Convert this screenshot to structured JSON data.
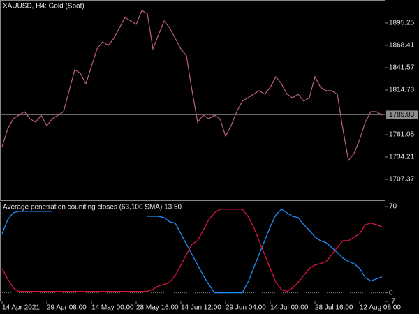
{
  "chart_data": [
    {
      "type": "line",
      "title": "XAUUSD, H4:  Gold (Spot)",
      "color": "#c0607e",
      "values": [
        1746.8,
        1767.8,
        1780.3,
        1784.5,
        1788.7,
        1780.3,
        1776.1,
        1784.5,
        1772.0,
        1780.3,
        1784.5,
        1788.7,
        1813.9,
        1839.1,
        1834.9,
        1822.3,
        1843.2,
        1864.2,
        1872.6,
        1868.4,
        1876.8,
        1889.4,
        1902.0,
        1897.8,
        1893.6,
        1910.3,
        1906.2,
        1864.2,
        1881.0,
        1897.8,
        1889.4,
        1876.8,
        1864.2,
        1855.8,
        1813.9,
        1776.1,
        1784.5,
        1780.3,
        1784.5,
        1780.3,
        1759.4,
        1772.0,
        1788.7,
        1801.3,
        1805.5,
        1809.7,
        1813.9,
        1809.7,
        1818.1,
        1830.7,
        1822.3,
        1809.7,
        1805.5,
        1809.7,
        1801.3,
        1805.5,
        1830.7,
        1818.1,
        1813.9,
        1813.9,
        1809.7,
        1767.8,
        1730.0,
        1738.4,
        1755.2,
        1776.1,
        1788.7,
        1788.7,
        1784.5
      ],
      "ylim": [
        1681.4,
        1922.9
      ],
      "yticks": [
        1895.25,
        1868.41,
        1841.57,
        1814.73,
        1761.05,
        1734.21,
        1707.37
      ],
      "price_line": 1785.03,
      "grid": false
    },
    {
      "type": "line",
      "title": "Average penetration couniting closes (63,100 SMA) 13 50",
      "categories": [
        "14 Apr 2021",
        null,
        null,
        null,
        null,
        null,
        null,
        null,
        "29 Apr 08:00",
        null,
        null,
        null,
        null,
        null,
        null,
        null,
        "14 May 00:00",
        null,
        null,
        null,
        null,
        null,
        null,
        null,
        "28 May 16:00",
        null,
        null,
        null,
        null,
        null,
        null,
        null,
        "14 Jun 12:00",
        null,
        null,
        null,
        null,
        null,
        null,
        null,
        "29 Jun 04:00",
        null,
        null,
        null,
        null,
        null,
        null,
        null,
        "14 Jul 00:00",
        null,
        null,
        null,
        null,
        null,
        null,
        null,
        "28 Jul 16:00",
        null,
        null,
        null,
        null,
        null,
        null,
        null,
        "12 Aug 08:00",
        null,
        null,
        null,
        null
      ],
      "series": [
        {
          "color": "#1e90ff",
          "values": [
            48,
            59.3,
            64.9,
            66.1,
            66.1,
            66.1,
            66.1,
            66.1,
            66.1,
            66.1,
            null,
            null,
            null,
            null,
            null,
            null,
            null,
            null,
            null,
            null,
            null,
            null,
            null,
            null,
            null,
            null,
            62.1,
            62.1,
            62.1,
            61,
            57.6,
            56.5,
            48,
            39.5,
            31.1,
            22.6,
            14.1,
            6.8,
            0,
            0,
            0,
            0,
            0,
            0,
            8.5,
            19.8,
            31.1,
            42.3,
            53.6,
            63.2,
            67.8,
            64.9,
            62.1,
            61,
            55.3,
            50.8,
            45.2,
            42.3,
            40.7,
            36.7,
            32.7,
            28.2,
            25.4,
            23.7,
            19.8,
            12.4,
            9.6,
            11.3,
            13
          ]
        },
        {
          "color": "#dc143c",
          "values": [
            19.8,
            11.3,
            4,
            1.1,
            1.1,
            1.1,
            1.1,
            1.1,
            1.1,
            1.1,
            1.1,
            1.1,
            1.1,
            1.1,
            1.1,
            1.1,
            1.1,
            1.1,
            1.1,
            1.1,
            1.1,
            1.1,
            1.1,
            1.1,
            1.1,
            1.1,
            1.1,
            2.8,
            5.6,
            6.8,
            8.5,
            14.1,
            22.6,
            31.1,
            39.5,
            42.3,
            50.8,
            59.3,
            64.9,
            67.8,
            67.8,
            67.8,
            67.8,
            67.8,
            62.1,
            53.6,
            42.3,
            31.1,
            19.8,
            8.5,
            2.8,
            1.1,
            4,
            8.5,
            14.1,
            19.8,
            22.6,
            23.7,
            25.4,
            31.1,
            36.7,
            42.3,
            42.3,
            45.2,
            48,
            55.3,
            56.5,
            55.3,
            53.6
          ]
        }
      ],
      "ylim": [
        -7,
        73.4
      ],
      "yticks": [
        70,
        0,
        -7
      ],
      "zero_line": 0
    }
  ]
}
